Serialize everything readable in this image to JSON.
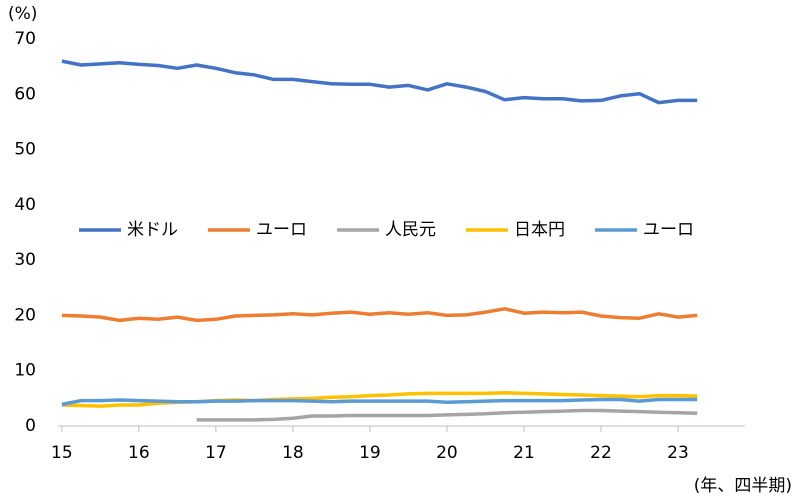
{
  "chart_data": {
    "type": "line",
    "y_label": "(%)",
    "x_label": "(年、四半期)",
    "x": [
      15,
      15.25,
      15.5,
      15.75,
      16,
      16.25,
      16.5,
      16.75,
      17,
      17.25,
      17.5,
      17.75,
      18,
      18.25,
      18.5,
      18.75,
      19,
      19.25,
      19.5,
      19.75,
      20,
      20.25,
      20.5,
      20.75,
      21,
      21.25,
      21.5,
      21.75,
      22,
      22.25,
      22.5,
      22.75,
      23,
      23.25
    ],
    "xlim": [
      14.95,
      24
    ],
    "xticks": [
      15,
      16,
      17,
      18,
      19,
      20,
      21,
      22,
      23
    ],
    "ylim": [
      0,
      70
    ],
    "yticks": [
      0,
      10,
      20,
      30,
      40,
      50,
      60,
      70
    ],
    "legend": "center",
    "series": [
      {
        "name": "米ドル",
        "color": "#4472c4",
        "values": [
          66.0,
          65.3,
          65.5,
          65.7,
          65.4,
          65.2,
          64.7,
          65.3,
          64.7,
          63.9,
          63.5,
          62.7,
          62.7,
          62.3,
          61.9,
          61.8,
          61.8,
          61.3,
          61.6,
          60.8,
          61.9,
          61.3,
          60.5,
          59.0,
          59.4,
          59.2,
          59.2,
          58.8,
          58.9,
          59.7,
          60.1,
          58.5,
          58.9,
          58.9
        ]
      },
      {
        "name": "ユーロ",
        "color": "#ed7d31",
        "values": [
          20.0,
          19.9,
          19.7,
          19.1,
          19.5,
          19.3,
          19.7,
          19.1,
          19.3,
          19.9,
          20.0,
          20.1,
          20.3,
          20.1,
          20.4,
          20.6,
          20.2,
          20.5,
          20.2,
          20.5,
          20.0,
          20.1,
          20.6,
          21.2,
          20.4,
          20.6,
          20.5,
          20.6,
          19.9,
          19.6,
          19.5,
          20.3,
          19.7,
          20.0
        ]
      },
      {
        "name": "人民元",
        "color": "#a5a5a5",
        "values": [
          null,
          null,
          null,
          null,
          null,
          null,
          null,
          1.1,
          1.1,
          1.1,
          1.1,
          1.2,
          1.4,
          1.8,
          1.8,
          1.9,
          1.9,
          1.9,
          1.9,
          1.9,
          2.0,
          2.1,
          2.2,
          2.4,
          2.5,
          2.6,
          2.7,
          2.8,
          2.8,
          2.7,
          2.6,
          2.5,
          2.4,
          2.3
        ]
      },
      {
        "name": "日本円",
        "color": "#ffc000",
        "values": [
          3.8,
          3.7,
          3.6,
          3.8,
          3.8,
          4.1,
          4.3,
          4.4,
          4.6,
          4.7,
          4.6,
          4.8,
          4.9,
          5.0,
          5.2,
          5.3,
          5.5,
          5.6,
          5.8,
          5.9,
          5.9,
          5.9,
          5.9,
          6.0,
          5.9,
          5.8,
          5.7,
          5.6,
          5.5,
          5.4,
          5.3,
          5.5,
          5.5,
          5.4
        ]
      },
      {
        "name": "ユーロ",
        "color": "#5b9bd5",
        "values": [
          3.9,
          4.6,
          4.6,
          4.7,
          4.6,
          4.5,
          4.4,
          4.4,
          4.5,
          4.5,
          4.6,
          4.6,
          4.6,
          4.5,
          4.4,
          4.5,
          4.5,
          4.5,
          4.5,
          4.5,
          4.3,
          4.4,
          4.5,
          4.6,
          4.6,
          4.6,
          4.6,
          4.7,
          4.8,
          4.8,
          4.5,
          4.8,
          4.8,
          4.8
        ]
      }
    ]
  }
}
